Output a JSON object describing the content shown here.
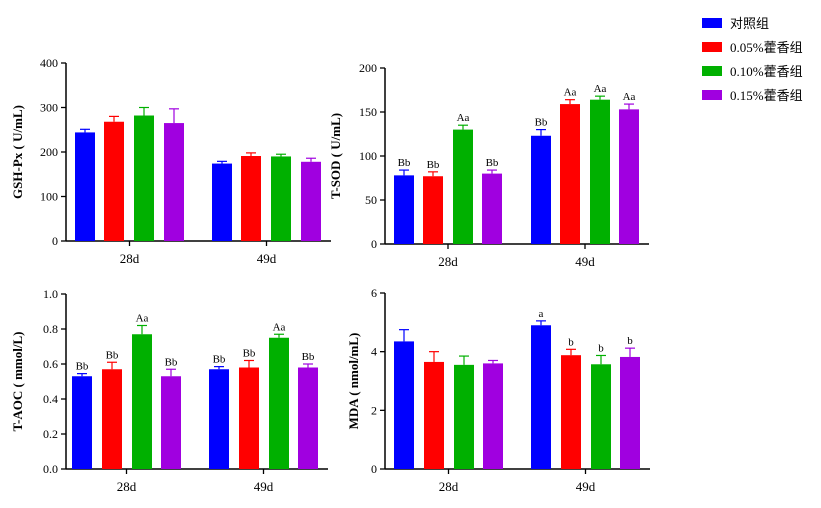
{
  "legend": {
    "entries": [
      {
        "label": "对照组",
        "color": "#0000ff"
      },
      {
        "label": "0.05%藿香组",
        "color": "#ff0000"
      },
      {
        "label": "0.10%藿香组",
        "color": "#00b000"
      },
      {
        "label": "0.15%藿香组",
        "color": "#a000e0"
      }
    ]
  },
  "chart_data": [
    {
      "type": "bar",
      "ylabel": "GSH-Px ( U/mL)",
      "ylim": [
        0,
        400
      ],
      "yticks": [
        0,
        100,
        200,
        300,
        400
      ],
      "categories": [
        "28d",
        "49d"
      ],
      "series": [
        {
          "name": "对照组",
          "values": [
            244,
            174
          ],
          "errors": [
            7,
            5
          ],
          "labels": [
            "",
            ""
          ]
        },
        {
          "name": "0.05%藿香组",
          "values": [
            268,
            191
          ],
          "errors": [
            12,
            7
          ],
          "labels": [
            "",
            ""
          ]
        },
        {
          "name": "0.10%藿香组",
          "values": [
            282,
            190
          ],
          "errors": [
            18,
            5
          ],
          "labels": [
            "",
            ""
          ]
        },
        {
          "name": "0.15%藿香组",
          "values": [
            265,
            178
          ],
          "errors": [
            32,
            8
          ],
          "labels": [
            "",
            ""
          ]
        }
      ]
    },
    {
      "type": "bar",
      "ylabel": "T-SOD ( U/mL)",
      "ylim": [
        0,
        200
      ],
      "yticks": [
        0,
        50,
        100,
        150,
        200
      ],
      "categories": [
        "28d",
        "49d"
      ],
      "series": [
        {
          "name": "对照组",
          "values": [
            78,
            123
          ],
          "errors": [
            6,
            7
          ],
          "labels": [
            "Bb",
            "Bb"
          ]
        },
        {
          "name": "0.05%藿香组",
          "values": [
            77,
            159
          ],
          "errors": [
            5,
            5
          ],
          "labels": [
            "Bb",
            "Aa"
          ]
        },
        {
          "name": "0.10%藿香组",
          "values": [
            130,
            164
          ],
          "errors": [
            5,
            4
          ],
          "labels": [
            "Aa",
            "Aa"
          ]
        },
        {
          "name": "0.15%藿香组",
          "values": [
            80,
            153
          ],
          "errors": [
            4,
            6
          ],
          "labels": [
            "Bb",
            "Aa"
          ]
        }
      ]
    },
    {
      "type": "bar",
      "ylabel": "T-AOC ( mmol/L)",
      "ylim": [
        0,
        1.0
      ],
      "yticks": [
        0.0,
        0.2,
        0.4,
        0.6,
        0.8,
        1.0
      ],
      "ytick_labels": [
        "0.0",
        "0.2",
        "0.4",
        "0.6",
        "0.8",
        "1.0"
      ],
      "categories": [
        "28d",
        "49d"
      ],
      "series": [
        {
          "name": "对照组",
          "values": [
            0.53,
            0.57
          ],
          "errors": [
            0.015,
            0.015
          ],
          "labels": [
            "Bb",
            "Bb"
          ]
        },
        {
          "name": "0.05%藿香组",
          "values": [
            0.57,
            0.58
          ],
          "errors": [
            0.04,
            0.04
          ],
          "labels": [
            "Bb",
            "Bb"
          ]
        },
        {
          "name": "0.10%藿香组",
          "values": [
            0.77,
            0.75
          ],
          "errors": [
            0.05,
            0.02
          ],
          "labels": [
            "Aa",
            "Aa"
          ]
        },
        {
          "name": "0.15%藿香组",
          "values": [
            0.53,
            0.58
          ],
          "errors": [
            0.04,
            0.02
          ],
          "labels": [
            "Bb",
            "Bb"
          ]
        }
      ]
    },
    {
      "type": "bar",
      "ylabel": "MDA ( nmol/mL)",
      "ylim": [
        0,
        6
      ],
      "yticks": [
        0,
        2,
        4,
        6
      ],
      "categories": [
        "28d",
        "49d"
      ],
      "series": [
        {
          "name": "对照组",
          "values": [
            4.35,
            4.9
          ],
          "errors": [
            0.4,
            0.15
          ],
          "labels": [
            "",
            "a"
          ]
        },
        {
          "name": "0.05%藿香组",
          "values": [
            3.65,
            3.88
          ],
          "errors": [
            0.35,
            0.2
          ],
          "labels": [
            "",
            "b"
          ]
        },
        {
          "name": "0.10%藿香组",
          "values": [
            3.55,
            3.57
          ],
          "errors": [
            0.3,
            0.3
          ],
          "labels": [
            "",
            "b"
          ]
        },
        {
          "name": "0.15%藿香组",
          "values": [
            3.6,
            3.82
          ],
          "errors": [
            0.1,
            0.3
          ],
          "labels": [
            "",
            "b"
          ]
        }
      ]
    }
  ]
}
